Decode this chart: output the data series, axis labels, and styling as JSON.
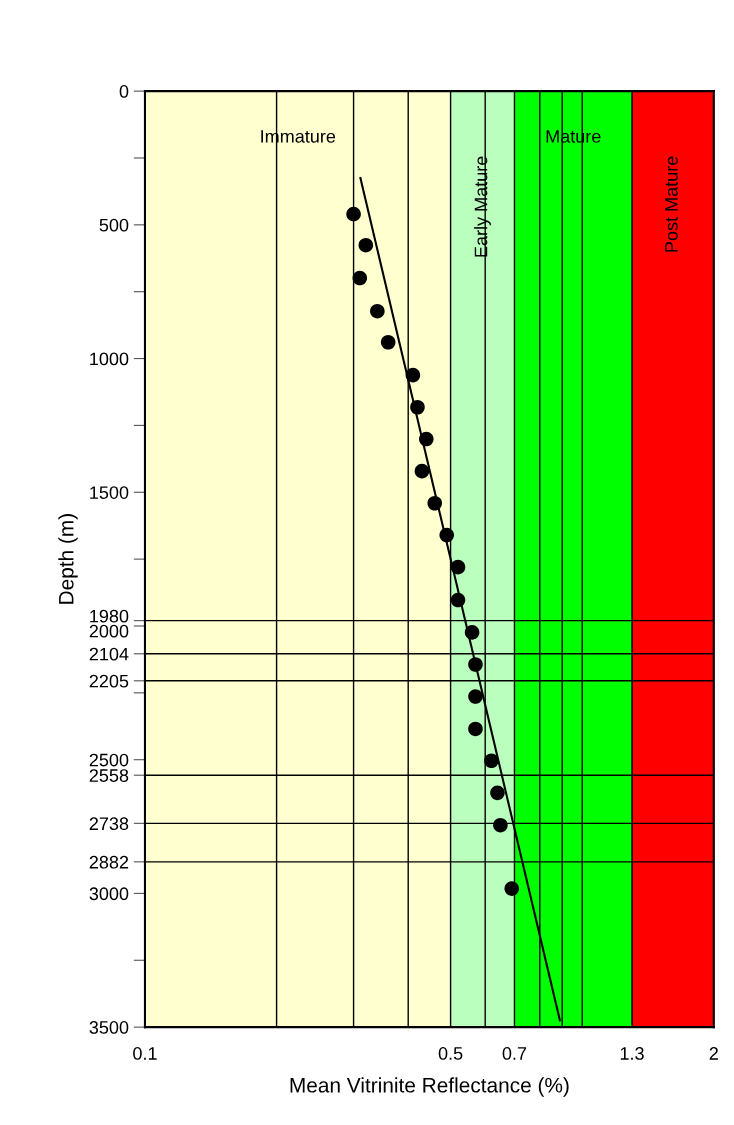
{
  "chart_data": {
    "type": "scatter",
    "xlabel": "Mean Vitrinite Reflectance (%)",
    "ylabel": "Depth (m)",
    "log": "x",
    "marker": "circle",
    "grid": false,
    "xlim": [
      0.1,
      2
    ],
    "xticks": [
      0.1,
      0.5,
      0.7,
      1.3,
      2
    ],
    "ylim": [
      3500,
      0
    ],
    "yticks": [
      0,
      {
        "value": 250,
        "label": null
      },
      500,
      {
        "value": 750,
        "label": null
      },
      1000,
      {
        "value": 1250,
        "label": null
      },
      1500,
      {
        "value": 1750,
        "label": null
      },
      1980,
      2000,
      2104,
      2205,
      {
        "value": 2250,
        "label": null
      },
      2500,
      2558,
      2738,
      2882,
      3000,
      {
        "value": 3250,
        "label": null
      },
      3500
    ],
    "series": [
      {
        "color": "#000000",
        "x": [
          0.3,
          0.32,
          0.31,
          0.34,
          0.36,
          0.41,
          0.42,
          0.44,
          0.43,
          0.46,
          0.49,
          0.52,
          0.52,
          0.56,
          0.57,
          0.57,
          0.57,
          0.62,
          0.64,
          0.65,
          0.69
        ],
        "values": [
          460,
          576,
          699,
          823,
          939,
          1062,
          1182,
          1301,
          1421,
          1541,
          1660,
          1780,
          1903,
          2024,
          2144,
          2264,
          2385,
          2504,
          2624,
          2745,
          2982
        ]
      },
      {
        "type": "line",
        "color": "#000000",
        "marker": "none",
        "x": [
          0.311,
          0.889
        ],
        "values": [
          325,
          3474
        ]
      }
    ],
    "bands": [
      {
        "axis": "x",
        "from": 0.1,
        "to": 0.5,
        "label": "Immature",
        "color": "#ffffd0"
      },
      {
        "axis": "x",
        "from": 0.5,
        "to": 0.7,
        "label": "Early Mature",
        "color": "#baffbd"
      },
      {
        "axis": "x",
        "from": 0.7,
        "to": 1.3,
        "label": "Mature",
        "color": "#00ff00"
      },
      {
        "axis": "x",
        "from": 1.3,
        "to": 2,
        "label": "Post Mature",
        "color": "#ff0000"
      }
    ],
    "ref_lines": [
      {
        "axis": "x",
        "value": 0.2,
        "color": "#000000"
      },
      {
        "axis": "x",
        "value": 0.3,
        "color": "#000000"
      },
      {
        "axis": "x",
        "value": 0.4,
        "color": "#000000"
      },
      {
        "axis": "x",
        "value": 0.5,
        "color": "#000000"
      },
      {
        "axis": "x",
        "value": 0.6,
        "color": "#000000"
      },
      {
        "axis": "x",
        "value": 0.7,
        "color": "#000000"
      },
      {
        "axis": "x",
        "value": 0.8,
        "color": "#000000"
      },
      {
        "axis": "x",
        "value": 0.9,
        "color": "#000000"
      },
      {
        "axis": "x",
        "value": 1.0,
        "color": "#000000"
      },
      {
        "axis": "x",
        "value": 1.3,
        "color": "#000000"
      },
      {
        "axis": "y",
        "value": 1980,
        "color": "#000000"
      },
      {
        "axis": "y",
        "value": 2104,
        "color": "#000000"
      },
      {
        "axis": "y",
        "value": 2205,
        "color": "#000000"
      },
      {
        "axis": "y",
        "value": 2558,
        "color": "#000000"
      },
      {
        "axis": "y",
        "value": 2738,
        "color": "#000000"
      },
      {
        "axis": "y",
        "value": 2882,
        "color": "#000000"
      }
    ]
  }
}
